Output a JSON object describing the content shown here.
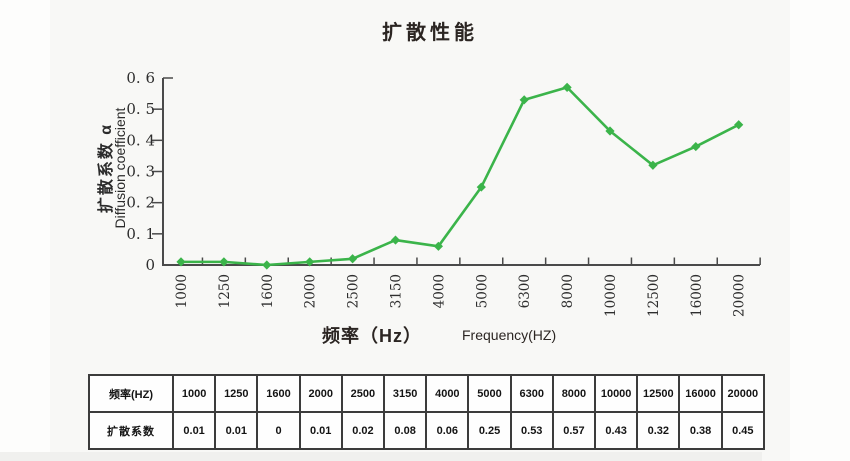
{
  "title": "扩散性能",
  "chart_data": {
    "type": "line",
    "title": "扩散性能",
    "categories": [
      1000,
      1250,
      1600,
      2000,
      2500,
      3150,
      4000,
      5000,
      6300,
      8000,
      10000,
      12500,
      16000,
      20000
    ],
    "values": [
      0.01,
      0.01,
      0,
      0.01,
      0.02,
      0.08,
      0.06,
      0.25,
      0.53,
      0.57,
      0.43,
      0.32,
      0.38,
      0.45
    ],
    "category_labels": [
      "1000",
      "1250",
      "1600",
      "2000",
      "2500",
      "3150",
      "4000",
      "5000",
      "6300",
      "8000",
      "10000",
      "12500",
      "16000",
      "20000"
    ],
    "ylabel_cn": "扩散系数 α",
    "ylabel_en": "Diffusion coefficient",
    "xlabel_cn": "频率（Hz）",
    "xlabel_en": "Frequency(HZ)",
    "ylim": [
      0,
      0.6
    ],
    "yticks": [
      0,
      0.1,
      0.2,
      0.3,
      0.4,
      0.5,
      0.6
    ],
    "ytick_labels": [
      "0",
      "0. 1",
      "0. 2",
      "0. 3",
      "0. 4",
      "0. 5",
      "0. 6"
    ],
    "grid": false,
    "legend": "none",
    "line_color": "#3bb44a",
    "marker": "diamond",
    "axis_color": "#4a4a4a"
  },
  "table": {
    "row1_header": "频率(HZ)",
    "row2_header": "扩散系数",
    "frequencies": [
      "1000",
      "1250",
      "1600",
      "2000",
      "2500",
      "3150",
      "4000",
      "5000",
      "6300",
      "8000",
      "10000",
      "12500",
      "16000",
      "20000"
    ],
    "coefficients": [
      "0.01",
      "0.01",
      "0",
      "0.01",
      "0.02",
      "0.08",
      "0.06",
      "0.25",
      "0.53",
      "0.57",
      "0.43",
      "0.32",
      "0.38",
      "0.45"
    ]
  }
}
